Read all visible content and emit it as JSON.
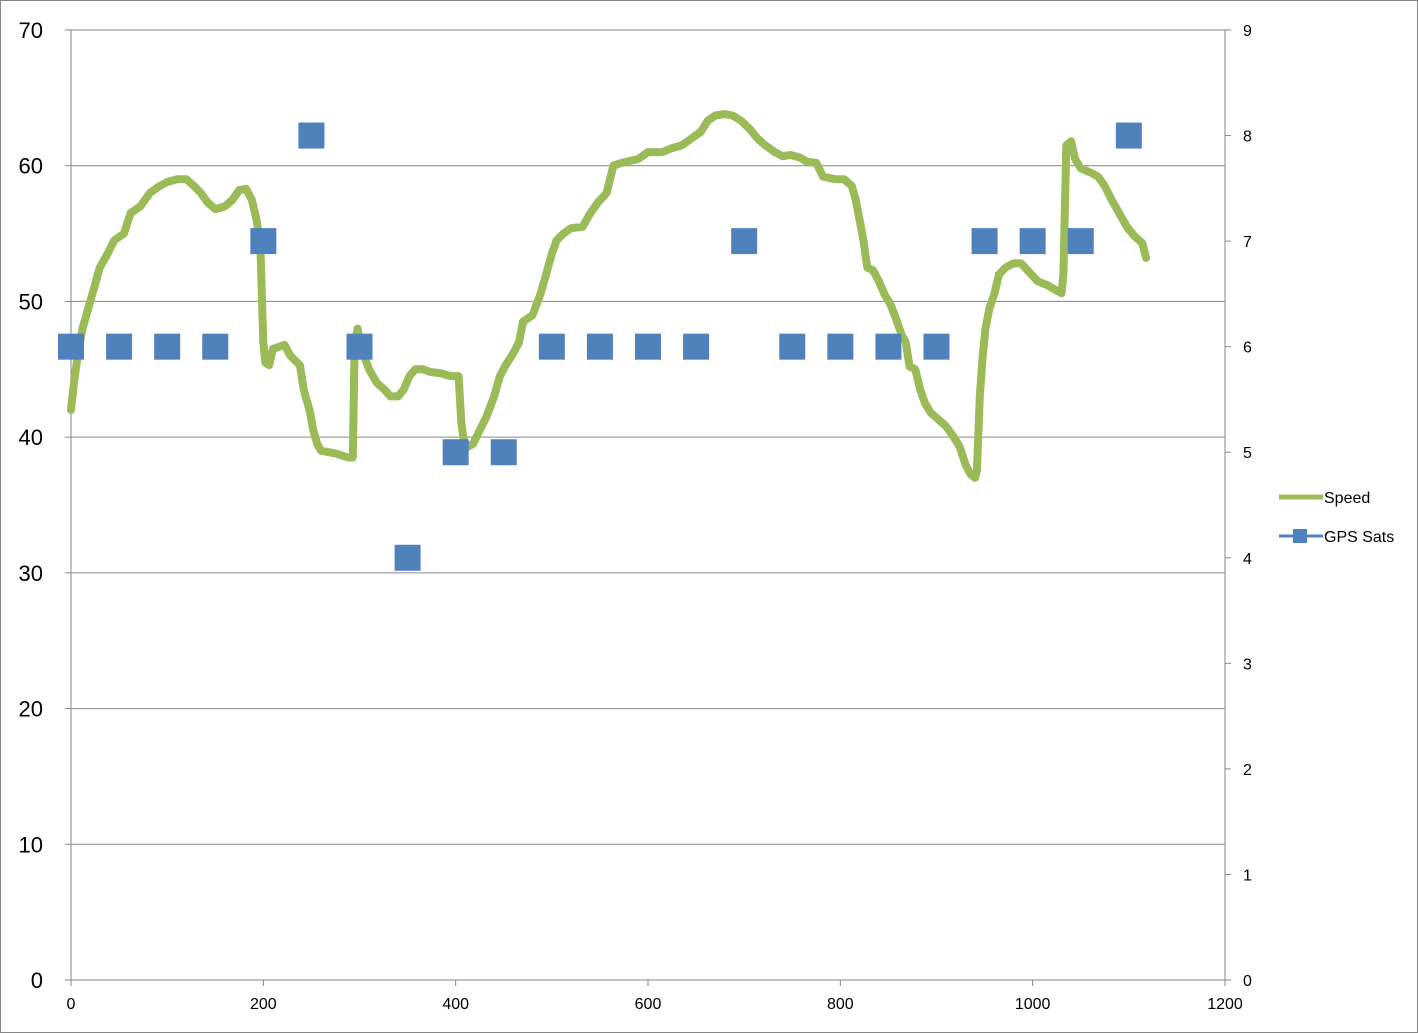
{
  "chart_data": {
    "type": "line",
    "title": "",
    "xlabel": "",
    "ylabel": "",
    "y2label": "",
    "xlim": [
      0,
      1200
    ],
    "ylim": [
      0,
      70
    ],
    "y2lim": [
      0,
      9
    ],
    "x_ticks": [
      "0",
      "200",
      "400",
      "600",
      "800",
      "1000",
      "1200"
    ],
    "y_ticks": [
      "0",
      "10",
      "20",
      "30",
      "40",
      "50",
      "60",
      "70"
    ],
    "y2_ticks": [
      "0",
      "1",
      "2",
      "3",
      "4",
      "5",
      "6",
      "7",
      "8",
      "9"
    ],
    "grid": "horizontal",
    "legend_position": "right",
    "series": [
      {
        "name": "Speed",
        "axis": "left",
        "color": "#9BBB59",
        "marker": "none",
        "points": [
          [
            0,
            42
          ],
          [
            3,
            44
          ],
          [
            7,
            46
          ],
          [
            12,
            48
          ],
          [
            18,
            49.5
          ],
          [
            24,
            51
          ],
          [
            30,
            52.5
          ],
          [
            38,
            53.5
          ],
          [
            45,
            54.5
          ],
          [
            55,
            55
          ],
          [
            62,
            56.5
          ],
          [
            72,
            57
          ],
          [
            82,
            58
          ],
          [
            92,
            58.5
          ],
          [
            100,
            58.8
          ],
          [
            110,
            59
          ],
          [
            120,
            59
          ],
          [
            128,
            58.5
          ],
          [
            135,
            58
          ],
          [
            142,
            57.3
          ],
          [
            150,
            56.8
          ],
          [
            160,
            57
          ],
          [
            168,
            57.5
          ],
          [
            175,
            58.2
          ],
          [
            182,
            58.3
          ],
          [
            188,
            57.5
          ],
          [
            193,
            56
          ],
          [
            197,
            54
          ],
          [
            200,
            47
          ],
          [
            202,
            45.5
          ],
          [
            206,
            45.3
          ],
          [
            210,
            46.5
          ],
          [
            222,
            46.8
          ],
          [
            228,
            46
          ],
          [
            238,
            45.3
          ],
          [
            242,
            43.5
          ],
          [
            248,
            42
          ],
          [
            252,
            40.5
          ],
          [
            256,
            39.5
          ],
          [
            260,
            39
          ],
          [
            275,
            38.8
          ],
          [
            288,
            38.5
          ],
          [
            293,
            38.5
          ],
          [
            295,
            47
          ],
          [
            298,
            48
          ],
          [
            302,
            46.5
          ],
          [
            310,
            45
          ],
          [
            318,
            44
          ],
          [
            326,
            43.5
          ],
          [
            332,
            43
          ],
          [
            340,
            43
          ],
          [
            346,
            43.5
          ],
          [
            352,
            44.5
          ],
          [
            358,
            45
          ],
          [
            366,
            45
          ],
          [
            374,
            44.8
          ],
          [
            385,
            44.7
          ],
          [
            395,
            44.5
          ],
          [
            403,
            44.5
          ],
          [
            406,
            41
          ],
          [
            409,
            39.5
          ],
          [
            413,
            39.3
          ],
          [
            418,
            39.5
          ],
          [
            425,
            40.5
          ],
          [
            432,
            41.5
          ],
          [
            440,
            43
          ],
          [
            446,
            44.5
          ],
          [
            452,
            45.3
          ],
          [
            460,
            46.2
          ],
          [
            466,
            47
          ],
          [
            470,
            48.5
          ],
          [
            480,
            49
          ],
          [
            488,
            50.5
          ],
          [
            494,
            52
          ],
          [
            500,
            53.5
          ],
          [
            505,
            54.5
          ],
          [
            512,
            55
          ],
          [
            520,
            55.4
          ],
          [
            532,
            55.5
          ],
          [
            540,
            56.5
          ],
          [
            548,
            57.3
          ],
          [
            557,
            58
          ],
          [
            564,
            60
          ],
          [
            572,
            60.2
          ],
          [
            590,
            60.5
          ],
          [
            600,
            61
          ],
          [
            615,
            61
          ],
          [
            625,
            61.3
          ],
          [
            635,
            61.5
          ],
          [
            645,
            62
          ],
          [
            655,
            62.5
          ],
          [
            662,
            63.3
          ],
          [
            670,
            63.7
          ],
          [
            680,
            63.8
          ],
          [
            688,
            63.7
          ],
          [
            697,
            63.3
          ],
          [
            706,
            62.7
          ],
          [
            714,
            62
          ],
          [
            722,
            61.5
          ],
          [
            732,
            61
          ],
          [
            740,
            60.7
          ],
          [
            748,
            60.8
          ],
          [
            758,
            60.6
          ],
          [
            765,
            60.3
          ],
          [
            775,
            60.2
          ],
          [
            782,
            59.2
          ],
          [
            795,
            59
          ],
          [
            804,
            59
          ],
          [
            812,
            58.5
          ],
          [
            816,
            57.5
          ],
          [
            820,
            56
          ],
          [
            824,
            54.5
          ],
          [
            828,
            52.5
          ],
          [
            834,
            52.3
          ],
          [
            840,
            51.5
          ],
          [
            846,
            50.5
          ],
          [
            852,
            49.8
          ],
          [
            858,
            48.7
          ],
          [
            864,
            47.5
          ],
          [
            868,
            47
          ],
          [
            872,
            45.2
          ],
          [
            878,
            45
          ],
          [
            883,
            43.5
          ],
          [
            888,
            42.5
          ],
          [
            894,
            41.8
          ],
          [
            902,
            41.3
          ],
          [
            910,
            40.8
          ],
          [
            918,
            40
          ],
          [
            924,
            39.3
          ],
          [
            930,
            38
          ],
          [
            935,
            37.3
          ],
          [
            940,
            37
          ],
          [
            942,
            37.5
          ],
          [
            945,
            43
          ],
          [
            948,
            46
          ],
          [
            951,
            48
          ],
          [
            955,
            49.5
          ],
          [
            960,
            50.5
          ],
          [
            965,
            52
          ],
          [
            972,
            52.5
          ],
          [
            980,
            52.8
          ],
          [
            988,
            52.8
          ],
          [
            996,
            52.2
          ],
          [
            1005,
            51.5
          ],
          [
            1015,
            51.2
          ],
          [
            1025,
            50.8
          ],
          [
            1030,
            50.6
          ],
          [
            1032,
            52
          ],
          [
            1035,
            61.5
          ],
          [
            1040,
            61.8
          ],
          [
            1044,
            60.5
          ],
          [
            1050,
            59.8
          ],
          [
            1060,
            59.5
          ],
          [
            1068,
            59.2
          ],
          [
            1075,
            58.5
          ],
          [
            1082,
            57.5
          ],
          [
            1090,
            56.5
          ],
          [
            1098,
            55.5
          ],
          [
            1106,
            54.8
          ],
          [
            1114,
            54.3
          ],
          [
            1118,
            53.2
          ]
        ]
      },
      {
        "name": "GPS Sats",
        "axis": "right",
        "color": "#4F81BD",
        "marker": "square",
        "line": "none",
        "points": [
          [
            0,
            6
          ],
          [
            50,
            6
          ],
          [
            100,
            6
          ],
          [
            150,
            6
          ],
          [
            200,
            7
          ],
          [
            250,
            8
          ],
          [
            300,
            6
          ],
          [
            350,
            4
          ],
          [
            400,
            5
          ],
          [
            450,
            5
          ],
          [
            500,
            6
          ],
          [
            550,
            6
          ],
          [
            600,
            6
          ],
          [
            650,
            6
          ],
          [
            700,
            7
          ],
          [
            750,
            6
          ],
          [
            800,
            6
          ],
          [
            850,
            6
          ],
          [
            900,
            6
          ],
          [
            950,
            7
          ],
          [
            1000,
            7
          ],
          [
            1050,
            7
          ],
          [
            1100,
            8
          ]
        ]
      }
    ]
  }
}
